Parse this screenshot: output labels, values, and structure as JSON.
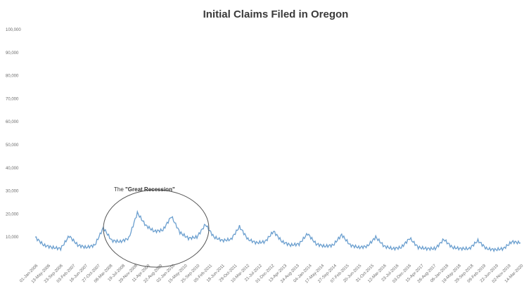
{
  "chart_data": {
    "type": "line",
    "title": "Initial Claims Filed in Oregon",
    "xlabel": "",
    "ylabel": "",
    "ylim": [
      0,
      100000
    ],
    "y_ticks": [
      "100,000",
      "90,000",
      "80,000",
      "70,000",
      "60,000",
      "50,000",
      "40,000",
      "30,000",
      "20,000",
      "10,000"
    ],
    "x_ticks": [
      "01-Jan-2006",
      "13-May-2006",
      "23-Sep-2006",
      "03-Feb-2007",
      "16-Jun-2007",
      "27-Oct-2007",
      "08-Mar-2008",
      "19-Jul-2008",
      "29-Nov-2008",
      "11-Apr-2009",
      "22-Aug-2009",
      "02-Jan-2010",
      "15-May-2010",
      "25-Sep-2010",
      "05-Feb-2011",
      "18-Jun-2011",
      "29-Oct-2011",
      "10-Mar-2012",
      "21-Jul-2012",
      "01-Dec-2012",
      "13-Apr-2013",
      "24-Aug-2013",
      "04-Jan-2014",
      "17-May-2014",
      "27-Sep-2014",
      "07-Feb-2015",
      "20-Jun-2015",
      "31-Oct-2015",
      "12-Mar-2016",
      "23-Jul-2016",
      "03-Dec-2016",
      "15-Apr-2017",
      "26-Aug-2017",
      "06-Jan-2018",
      "19-May-2018",
      "29-Sep-2018",
      "09-Feb-2019",
      "22-Jun-2019",
      "02-Nov-2019",
      "14-Mar-2020"
    ],
    "grid": false,
    "legend": "none",
    "series": [
      {
        "color": "#6b9fcf",
        "x": [
          "Jan-2006",
          "Apr-2006",
          "Jul-2006",
          "Oct-2006",
          "Jan-2007",
          "Apr-2007",
          "Jul-2007",
          "Oct-2007",
          "Jan-2008",
          "Apr-2008",
          "Jul-2008",
          "Oct-2008",
          "Jan-2009",
          "Apr-2009",
          "Jul-2009",
          "Oct-2009",
          "Jan-2010",
          "Apr-2010",
          "Jul-2010",
          "Oct-2010",
          "Jan-2011",
          "Apr-2011",
          "Jul-2011",
          "Oct-2011",
          "Jan-2012",
          "Apr-2012",
          "Jul-2012",
          "Oct-2012",
          "Jan-2013",
          "Apr-2013",
          "Jul-2013",
          "Oct-2013",
          "Jan-2014",
          "Apr-2014",
          "Jul-2014",
          "Oct-2014",
          "Jan-2015",
          "Apr-2015",
          "Jul-2015",
          "Oct-2015",
          "Jan-2016",
          "Apr-2016",
          "Jul-2016",
          "Oct-2016",
          "Jan-2017",
          "Apr-2017",
          "Jul-2017",
          "Oct-2017",
          "Jan-2018",
          "Apr-2018",
          "Jul-2018",
          "Oct-2018",
          "Jan-2019",
          "Apr-2019",
          "Jul-2019",
          "Oct-2019",
          "Jan-2020",
          "Mar-2020"
        ],
        "values": [
          10000,
          6500,
          5500,
          5000,
          10500,
          6500,
          5500,
          6500,
          14000,
          8500,
          8000,
          9500,
          20500,
          15000,
          12500,
          13000,
          19000,
          12000,
          9500,
          10000,
          15500,
          10000,
          8500,
          9000,
          14500,
          9000,
          7500,
          8000,
          12500,
          8000,
          6500,
          7000,
          11500,
          7000,
          6000,
          6500,
          11000,
          6500,
          5500,
          6000,
          10000,
          6000,
          5000,
          5500,
          9500,
          5500,
          5000,
          5000,
          9000,
          5500,
          5000,
          5000,
          8500,
          5000,
          4500,
          5000,
          8000,
          7500
        ]
      }
    ],
    "annotations": [
      {
        "text_prefix": "The ",
        "text_bold": "\"Great Recession\""
      }
    ]
  }
}
